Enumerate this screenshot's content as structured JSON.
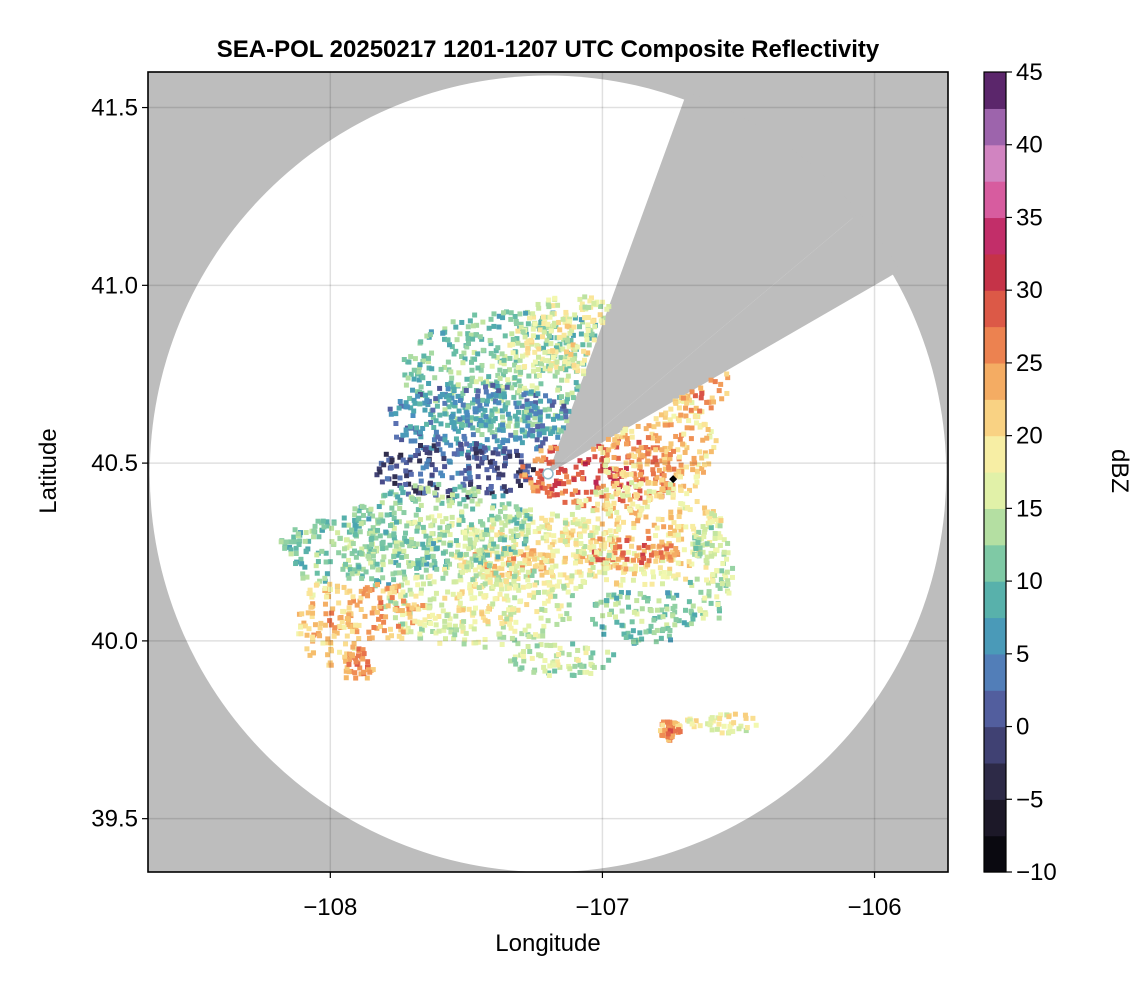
{
  "chart_data": {
    "type": "heatmap",
    "title": "SEA-POL 20250217 1201-1207 UTC Composite Reflectivity",
    "xlabel": "Longitude",
    "ylabel": "Latitude",
    "xlim": [
      -108.67,
      -105.73
    ],
    "ylim": [
      39.35,
      41.6
    ],
    "x_ticks": [
      -108,
      -107,
      -106
    ],
    "x_tick_labels": [
      "−108",
      "−107",
      "−106"
    ],
    "y_ticks": [
      39.5,
      40.0,
      40.5,
      41.0,
      41.5
    ],
    "y_tick_labels": [
      "39.5",
      "40.0",
      "40.5",
      "41.0",
      "41.5"
    ],
    "grid": true,
    "background_color": "#bdbdbd",
    "radar": {
      "center_lon": -107.2,
      "center_lat": 40.47,
      "max_range_lat_deg": 1.12,
      "blocked_sectors_deg_from_north": [
        [
          20,
          50
        ],
        [
          50,
          60
        ]
      ]
    },
    "marker": {
      "lon": -106.74,
      "lat": 40.455,
      "shape": "diamond",
      "color": "#000000"
    },
    "colorbar": {
      "label": "dBZ",
      "vmin": -10,
      "vmax": 45,
      "step": 2.5,
      "ticks": [
        -10,
        -5,
        0,
        5,
        10,
        15,
        20,
        25,
        30,
        35,
        40,
        45
      ],
      "tick_labels": [
        "−10",
        "−5",
        "0",
        "5",
        "10",
        "15",
        "20",
        "25",
        "30",
        "35",
        "40",
        "45"
      ],
      "colormap_stops": [
        [
          -10,
          "#000004"
        ],
        [
          -7.5,
          "#14111c"
        ],
        [
          -5,
          "#241f33"
        ],
        [
          -2.5,
          "#36345a"
        ],
        [
          0,
          "#4a4d8c"
        ],
        [
          2.5,
          "#5a6eb0"
        ],
        [
          5,
          "#4a8ec0"
        ],
        [
          7.5,
          "#4aa5b0"
        ],
        [
          10,
          "#66bda5"
        ],
        [
          12.5,
          "#98d4a4"
        ],
        [
          15,
          "#cfeaa0"
        ],
        [
          17.5,
          "#f2f8b0"
        ],
        [
          20,
          "#fbe497"
        ],
        [
          22.5,
          "#f6c06e"
        ],
        [
          25,
          "#f29858"
        ],
        [
          27.5,
          "#e66c48"
        ],
        [
          30,
          "#d24646"
        ],
        [
          32.5,
          "#b8204a"
        ],
        [
          35,
          "#cc3c88"
        ],
        [
          37.5,
          "#e17cb6"
        ],
        [
          40,
          "#c08ccc"
        ],
        [
          42.5,
          "#7a3c8c"
        ],
        [
          45,
          "#3b0f4a"
        ]
      ]
    },
    "echo_regions": [
      {
        "lon": -107.3,
        "lat": 40.75,
        "dlon": 0.45,
        "dlat": 0.18,
        "dbz": 14
      },
      {
        "lon": -107.1,
        "lat": 40.85,
        "dlon": 0.25,
        "dlat": 0.12,
        "dbz": 20
      },
      {
        "lon": -107.45,
        "lat": 40.62,
        "dlon": 0.35,
        "dlat": 0.1,
        "dbz": 8
      },
      {
        "lon": -107.55,
        "lat": 40.48,
        "dlon": 0.3,
        "dlat": 0.08,
        "dbz": 3
      },
      {
        "lon": -107.0,
        "lat": 40.47,
        "dlon": 0.3,
        "dlat": 0.1,
        "dbz": 30
      },
      {
        "lon": -106.8,
        "lat": 40.55,
        "dlon": 0.22,
        "dlat": 0.15,
        "dbz": 24
      },
      {
        "lon": -106.65,
        "lat": 40.72,
        "dlon": 0.12,
        "dlat": 0.08,
        "dbz": 27
      },
      {
        "lon": -106.85,
        "lat": 40.3,
        "dlon": 0.3,
        "dlat": 0.15,
        "dbz": 22
      },
      {
        "lon": -106.9,
        "lat": 40.25,
        "dlon": 0.18,
        "dlat": 0.05,
        "dbz": 29
      },
      {
        "lon": -107.25,
        "lat": 40.25,
        "dlon": 0.3,
        "dlat": 0.12,
        "dbz": 20
      },
      {
        "lon": -107.35,
        "lat": 40.22,
        "dlon": 0.18,
        "dlat": 0.05,
        "dbz": 25
      },
      {
        "lon": -107.6,
        "lat": 40.32,
        "dlon": 0.35,
        "dlat": 0.12,
        "dbz": 15
      },
      {
        "lon": -107.9,
        "lat": 40.25,
        "dlon": 0.3,
        "dlat": 0.1,
        "dbz": 14
      },
      {
        "lon": -107.45,
        "lat": 40.1,
        "dlon": 0.35,
        "dlat": 0.12,
        "dbz": 19
      },
      {
        "lon": -107.8,
        "lat": 40.08,
        "dlon": 0.15,
        "dlat": 0.08,
        "dbz": 26
      },
      {
        "lon": -108.0,
        "lat": 40.05,
        "dlon": 0.12,
        "dlat": 0.12,
        "dbz": 24
      },
      {
        "lon": -107.9,
        "lat": 39.93,
        "dlon": 0.06,
        "dlat": 0.05,
        "dbz": 28
      },
      {
        "lon": -106.85,
        "lat": 40.07,
        "dlon": 0.2,
        "dlat": 0.08,
        "dbz": 14
      },
      {
        "lon": -106.6,
        "lat": 40.2,
        "dlon": 0.08,
        "dlat": 0.15,
        "dbz": 17
      },
      {
        "lon": -107.15,
        "lat": 39.95,
        "dlon": 0.2,
        "dlat": 0.05,
        "dbz": 17
      },
      {
        "lon": -106.55,
        "lat": 39.77,
        "dlon": 0.15,
        "dlat": 0.03,
        "dbz": 21
      },
      {
        "lon": -106.75,
        "lat": 39.75,
        "dlon": 0.04,
        "dlat": 0.03,
        "dbz": 27
      }
    ]
  }
}
